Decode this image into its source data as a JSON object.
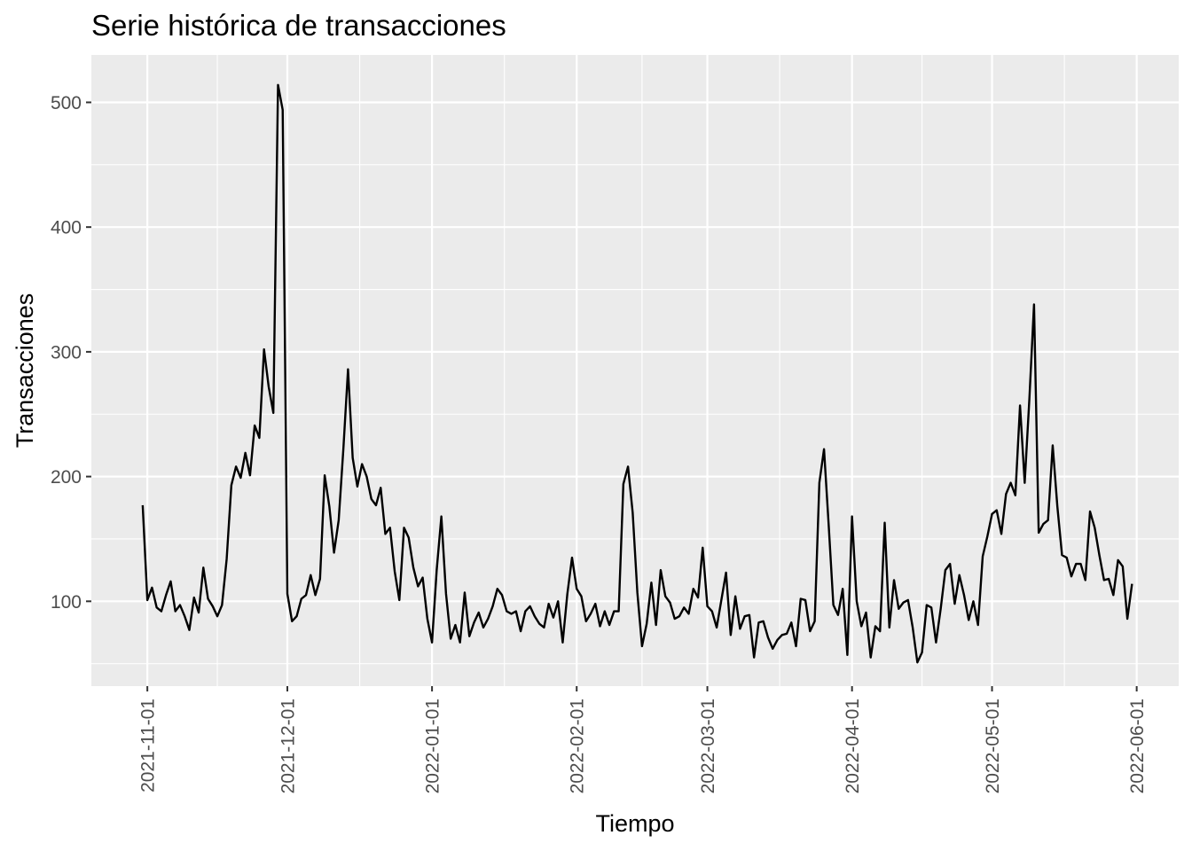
{
  "chart_data": {
    "type": "line",
    "title": "Serie histórica de transacciones",
    "xlabel": "Tiempo",
    "ylabel": "Transacciones",
    "x_tick_labels": [
      "2021-11-01",
      "2021-12-01",
      "2022-01-01",
      "2022-02-01",
      "2022-03-01",
      "2022-04-01",
      "2022-05-01",
      "2022-06-01"
    ],
    "y_tick_labels": [
      "100",
      "200",
      "300",
      "400",
      "500"
    ],
    "y_ticks": [
      100,
      200,
      300,
      400,
      500
    ],
    "xlim": [
      "2021-10-20",
      "2022-06-10"
    ],
    "ylim": [
      32,
      538
    ],
    "grid": true,
    "panel_background": "#ebebeb",
    "line_color": "#000000",
    "series": [
      {
        "start_date": "2021-10-31",
        "values": [
          177,
          101,
          111,
          95,
          92,
          105,
          116,
          92,
          97,
          88,
          77,
          103,
          91,
          127,
          102,
          96,
          88,
          97,
          134,
          193,
          208,
          199,
          219,
          201,
          241,
          231,
          302,
          272,
          251,
          514,
          494,
          106,
          84,
          88,
          102,
          105,
          121,
          105,
          118,
          201,
          176,
          139,
          165,
          222,
          286,
          215,
          192,
          210,
          200,
          182,
          177,
          191,
          154,
          159,
          124,
          101,
          159,
          151,
          127,
          112,
          119,
          86,
          67,
          125,
          168,
          106,
          70,
          81,
          67,
          107,
          72,
          83,
          91,
          79,
          86,
          96,
          110,
          105,
          92,
          90,
          92,
          76,
          92,
          96,
          88,
          82,
          79,
          98,
          87,
          100,
          67,
          106,
          135,
          110,
          104,
          84,
          90,
          98,
          80,
          92,
          81,
          92,
          92,
          194,
          208,
          171,
          107,
          64,
          82,
          115,
          81,
          125,
          104,
          99,
          86,
          88,
          95,
          90,
          110,
          103,
          143,
          96,
          92,
          79,
          101,
          123,
          73,
          104,
          78,
          88,
          89,
          55,
          83,
          84,
          71,
          62,
          69,
          73,
          74,
          83,
          64,
          102,
          101,
          76,
          84,
          195,
          222,
          161,
          97,
          89,
          110,
          57,
          168,
          100,
          80,
          91,
          55,
          80,
          76,
          163,
          79,
          117,
          94,
          99,
          101,
          79,
          51,
          59,
          97,
          95,
          67,
          94,
          125,
          130,
          98,
          121,
          105,
          85,
          100,
          81,
          136,
          152,
          170,
          173,
          154,
          186,
          195,
          185,
          257,
          195,
          262,
          338,
          155,
          162,
          165,
          225,
          176,
          137,
          135,
          120,
          130,
          130,
          117,
          172,
          159,
          137,
          117,
          118,
          105,
          133,
          128,
          86,
          114
        ]
      }
    ]
  }
}
